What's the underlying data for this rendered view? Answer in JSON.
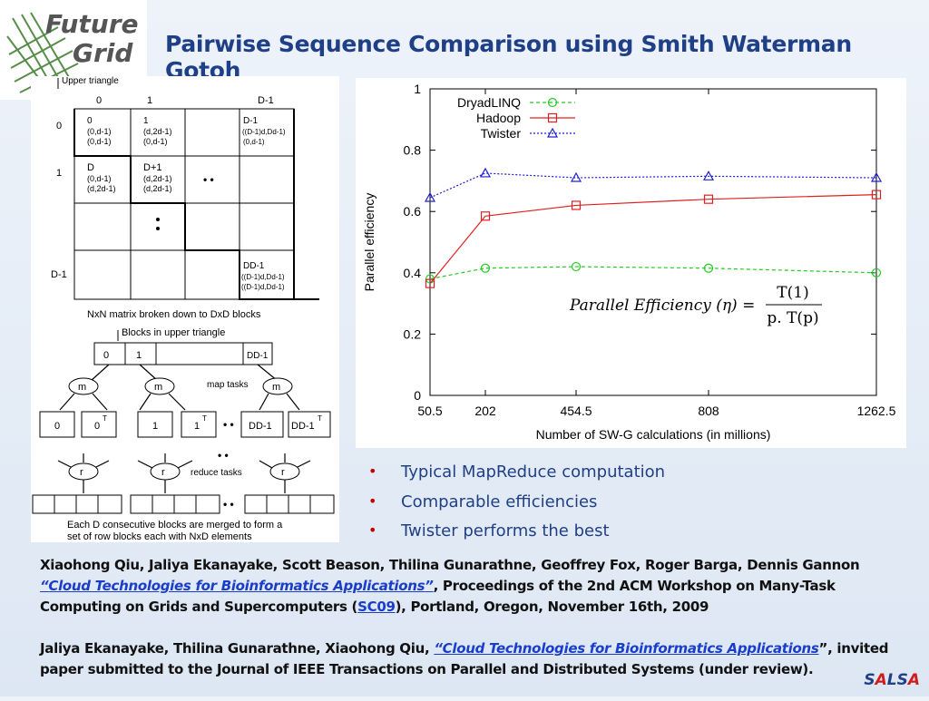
{
  "logo": {
    "line1": "Future",
    "line2": "Grid"
  },
  "title": "Pairwise Sequence Comparison using Smith Waterman Gotoh",
  "diagram": {
    "upper_label": "Upper triangle",
    "col_headers": [
      "0",
      "1",
      "D-1"
    ],
    "row_headers": [
      "0",
      "1",
      "D-1"
    ],
    "cells": {
      "c00": [
        "0",
        "(0,d-1)",
        "(0,d-1)"
      ],
      "c01": [
        "1",
        "(d,2d-1)",
        "(0,d-1)"
      ],
      "c03": [
        "D-1",
        "((D-1)d,Dd-1)",
        "(0,d-1)"
      ],
      "c10": [
        "D",
        "(0,d-1)",
        "(d,2d-1)"
      ],
      "c11": [
        "D+1",
        "(d,2d-1)",
        "(d,2d-1)"
      ],
      "c33": [
        "DD-1",
        "((D-1)d,Dd-1)",
        "((D-1)d,Dd-1)"
      ]
    },
    "dots": "• •",
    "caption1": "NxN matrix broken down to DxD blocks",
    "blocks_label": "Blocks in upper triangle",
    "block_cells": [
      "0",
      "1",
      "DD-1"
    ],
    "map_label": "m",
    "map_tasks": "map tasks",
    "map_outputs": [
      "0",
      "0",
      "1",
      "1",
      "DD-1",
      "DD-1"
    ],
    "transpose": "T",
    "reduce_label": "r",
    "reduce_tasks": "reduce tasks",
    "caption2_line1": "Each D consecutive blocks are merged to form a",
    "caption2_line2": "set of row blocks each with NxD elements"
  },
  "chart_data": {
    "type": "line",
    "x": [
      50.5,
      202,
      454.5,
      808,
      1262.5
    ],
    "x_tick_labels": [
      "50.5",
      "202",
      "454.5",
      "808",
      "1262.5"
    ],
    "xlabel": "Number of SW-G calculations (in millions)",
    "ylabel": "Parallel efficiency",
    "ylim": [
      0,
      1
    ],
    "y_ticks": [
      0,
      0.2,
      0.4,
      0.6,
      0.8,
      1
    ],
    "y_tick_labels": [
      "0",
      "0.2",
      "0.4",
      "0.6",
      "0.8",
      "1"
    ],
    "legend_position": "top-left",
    "grid": false,
    "series": [
      {
        "name": "DryadLINQ",
        "values": [
          0.38,
          0.415,
          0.42,
          0.415,
          0.4
        ],
        "color": "#22cc22",
        "marker": "circle",
        "dash": "dashed"
      },
      {
        "name": "Hadoop",
        "values": [
          0.365,
          0.585,
          0.62,
          0.64,
          0.655
        ],
        "color": "#e02020",
        "marker": "square",
        "dash": "solid"
      },
      {
        "name": "Twister",
        "values": [
          0.645,
          0.725,
          0.71,
          0.715,
          0.71
        ],
        "color": "#2020d0",
        "marker": "triangle",
        "dash": "dotted"
      }
    ],
    "formula": {
      "lhs": "Parallel Efficiency (η) =",
      "numerator": "T(1)",
      "denominator": "p. T(p)"
    }
  },
  "bullets": [
    "Typical MapReduce computation",
    "Comparable efficiencies",
    "Twister performs the best"
  ],
  "refs": {
    "ref1_authors": "Xiaohong Qiu, Jaliya Ekanayake, Scott Beason, Thilina Gunarathne, Geoffrey Fox, Roger Barga, Dennis Gannon",
    "ref1_quote_open": "“",
    "ref1_title": "Cloud Technologies for Bioinformatics Applications",
    "ref1_quote_close": "”",
    "ref1_mid": ", Proceedings of the 2nd ACM Workshop on Many-Task Computing on Grids and Supercomputers (",
    "ref1_sc09": "SC09",
    "ref1_end": "), Portland, Oregon, November 16th, 2009",
    "ref2_authors": "Jaliya Ekanayake, Thilina Gunarathne, Xiaohong Qiu, ",
    "ref2_title": "“Cloud Technologies for Bioinformatics Applications",
    "ref2_end": "”, invited paper submitted to the Journal of IEEE Transactions on Parallel and Distributed Systems (under review)."
  },
  "footer": {
    "salsa_parts": [
      "S",
      "A",
      "L",
      "S",
      "A"
    ]
  }
}
